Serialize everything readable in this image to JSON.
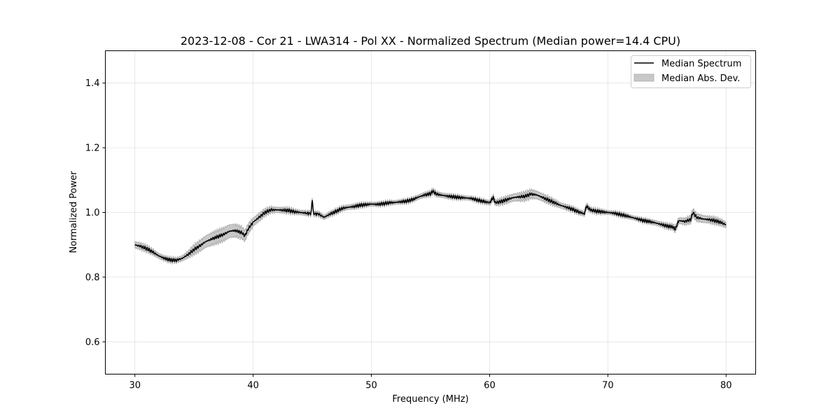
{
  "chart_data": {
    "type": "line",
    "title": "2023-12-08 - Cor 21 - LWA314 - Pol XX - Normalized Spectrum (Median power=14.4 CPU)",
    "xlabel": "Frequency (MHz)",
    "ylabel": "Normalized Power",
    "xlim": [
      27.5,
      82.5
    ],
    "ylim": [
      0.5,
      1.5
    ],
    "grid": true,
    "xticks": [
      30,
      40,
      50,
      60,
      70,
      80
    ],
    "xtick_labels": [
      "30",
      "40",
      "50",
      "60",
      "70",
      "80"
    ],
    "yticks": [
      0.6,
      0.8,
      1.0,
      1.2,
      1.4
    ],
    "ytick_labels": [
      "0.6",
      "0.8",
      "1.0",
      "1.2",
      "1.4"
    ],
    "legend_position": "upper right",
    "series": [
      {
        "name": "Median Spectrum",
        "kind": "line",
        "color": "#000000",
        "x": [
          30,
          30.5,
          31,
          31.5,
          32,
          32.5,
          33,
          33.5,
          34,
          34.5,
          35,
          35.5,
          36,
          36.5,
          37,
          37.5,
          38,
          38.5,
          39,
          39.3,
          39.6,
          40,
          40.5,
          41,
          41.5,
          42,
          42.5,
          43,
          43.5,
          44,
          44.5,
          44.9,
          45,
          45.1,
          45.5,
          46,
          46.5,
          47,
          47.5,
          48,
          48.5,
          49,
          49.5,
          50,
          50.5,
          51,
          51.5,
          52,
          52.5,
          53,
          53.5,
          54,
          54.5,
          55,
          55.2,
          55.5,
          56,
          56.5,
          57,
          57.5,
          58,
          58.5,
          59,
          59.5,
          60,
          60.3,
          60.5,
          61,
          61.5,
          62,
          62.5,
          63,
          63.5,
          64,
          64.5,
          65,
          65.5,
          66,
          66.5,
          67,
          67.5,
          68,
          68.2,
          68.5,
          69,
          69.5,
          70,
          70.5,
          71,
          71.5,
          72,
          72.5,
          73,
          73.5,
          74,
          74.5,
          75,
          75.5,
          75.7,
          76,
          76.5,
          77,
          77.2,
          77.5,
          78,
          78.5,
          79,
          79.5,
          80
        ],
        "y": [
          0.9,
          0.895,
          0.888,
          0.878,
          0.866,
          0.858,
          0.853,
          0.852,
          0.858,
          0.87,
          0.885,
          0.897,
          0.91,
          0.918,
          0.925,
          0.932,
          0.942,
          0.944,
          0.938,
          0.928,
          0.95,
          0.97,
          0.985,
          1.0,
          1.008,
          1.008,
          1.007,
          1.006,
          1.002,
          1.0,
          0.998,
          0.997,
          1.042,
          0.996,
          0.996,
          0.985,
          0.995,
          1.003,
          1.012,
          1.016,
          1.018,
          1.022,
          1.024,
          1.026,
          1.025,
          1.027,
          1.03,
          1.031,
          1.033,
          1.035,
          1.04,
          1.048,
          1.054,
          1.058,
          1.066,
          1.057,
          1.053,
          1.05,
          1.048,
          1.046,
          1.045,
          1.043,
          1.038,
          1.034,
          1.03,
          1.046,
          1.03,
          1.034,
          1.04,
          1.046,
          1.048,
          1.05,
          1.057,
          1.054,
          1.046,
          1.038,
          1.03,
          1.022,
          1.016,
          1.01,
          1.002,
          0.996,
          1.02,
          1.008,
          1.004,
          1.002,
          1.0,
          0.998,
          0.994,
          0.99,
          0.985,
          0.98,
          0.975,
          0.972,
          0.968,
          0.963,
          0.958,
          0.955,
          0.948,
          0.975,
          0.972,
          0.978,
          1.0,
          0.985,
          0.98,
          0.978,
          0.975,
          0.97,
          0.962
        ],
        "mad": [
          0.01,
          0.01,
          0.009,
          0.008,
          0.008,
          0.007,
          0.007,
          0.007,
          0.008,
          0.01,
          0.014,
          0.016,
          0.018,
          0.019,
          0.02,
          0.02,
          0.02,
          0.019,
          0.018,
          0.016,
          0.015,
          0.013,
          0.012,
          0.01,
          0.009,
          0.008,
          0.008,
          0.008,
          0.007,
          0.007,
          0.007,
          0.007,
          0.008,
          0.007,
          0.007,
          0.007,
          0.007,
          0.007,
          0.007,
          0.007,
          0.007,
          0.006,
          0.006,
          0.006,
          0.006,
          0.006,
          0.006,
          0.006,
          0.006,
          0.006,
          0.006,
          0.007,
          0.007,
          0.007,
          0.008,
          0.007,
          0.007,
          0.007,
          0.006,
          0.006,
          0.006,
          0.006,
          0.006,
          0.006,
          0.007,
          0.008,
          0.008,
          0.009,
          0.01,
          0.011,
          0.012,
          0.013,
          0.013,
          0.012,
          0.011,
          0.01,
          0.009,
          0.008,
          0.008,
          0.007,
          0.007,
          0.007,
          0.008,
          0.007,
          0.007,
          0.006,
          0.006,
          0.006,
          0.006,
          0.006,
          0.006,
          0.006,
          0.006,
          0.006,
          0.007,
          0.007,
          0.007,
          0.008,
          0.008,
          0.009,
          0.01,
          0.011,
          0.012,
          0.011,
          0.011,
          0.01,
          0.01,
          0.009,
          0.009
        ]
      },
      {
        "name": "Median Abs. Dev.",
        "kind": "band",
        "color": "#a0a0a0"
      }
    ]
  }
}
